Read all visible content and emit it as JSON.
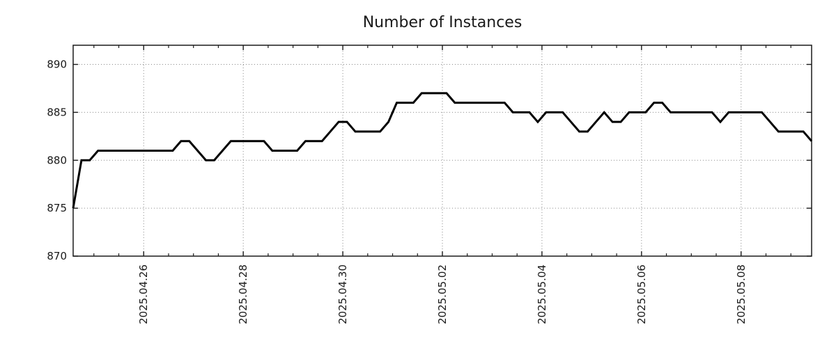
{
  "chart_data": {
    "type": "line",
    "title": "Number of Instances",
    "xlabel": "",
    "ylabel": "",
    "grid": true,
    "legend": "none",
    "background": "#ffffff",
    "line_color": "#000000",
    "grid_color": "#8a8a8a",
    "axis_color": "#1a1a1a",
    "text_color": "#1a1a1a",
    "y_ticks": [
      870,
      875,
      880,
      885,
      890
    ],
    "ylim": [
      870,
      892
    ],
    "x_tick_labels": [
      "2025.04.26",
      "2025.04.28",
      "2025.04.30",
      "2025.05.02",
      "2025.05.04",
      "2025.05.06",
      "2025.05.08"
    ],
    "x_tick_day_offsets": [
      0,
      2,
      4,
      6,
      8,
      10,
      12
    ],
    "x_minor_tick_step_days": 0.5,
    "x_range_days": [
      -1.4167,
      13.4167
    ],
    "series": [
      {
        "name": "instances",
        "x_start_days": -1.4167,
        "x_step_days": 0.166667,
        "values": [
          875,
          880,
          880,
          881,
          881,
          881,
          881,
          881,
          881,
          881,
          881,
          881,
          881,
          882,
          882,
          881,
          880,
          880,
          881,
          882,
          882,
          882,
          882,
          882,
          881,
          881,
          881,
          881,
          882,
          882,
          882,
          883,
          884,
          884,
          883,
          883,
          883,
          883,
          884,
          886,
          886,
          886,
          887,
          887,
          887,
          887,
          886,
          886,
          886,
          886,
          886,
          886,
          886,
          885,
          885,
          885,
          884,
          885,
          885,
          885,
          884,
          883,
          883,
          884,
          885,
          884,
          884,
          885,
          885,
          885,
          886,
          886,
          885,
          885,
          885,
          885,
          885,
          885,
          884,
          885,
          885,
          885,
          885,
          885,
          884,
          883,
          883,
          883,
          883,
          882
        ]
      }
    ]
  }
}
